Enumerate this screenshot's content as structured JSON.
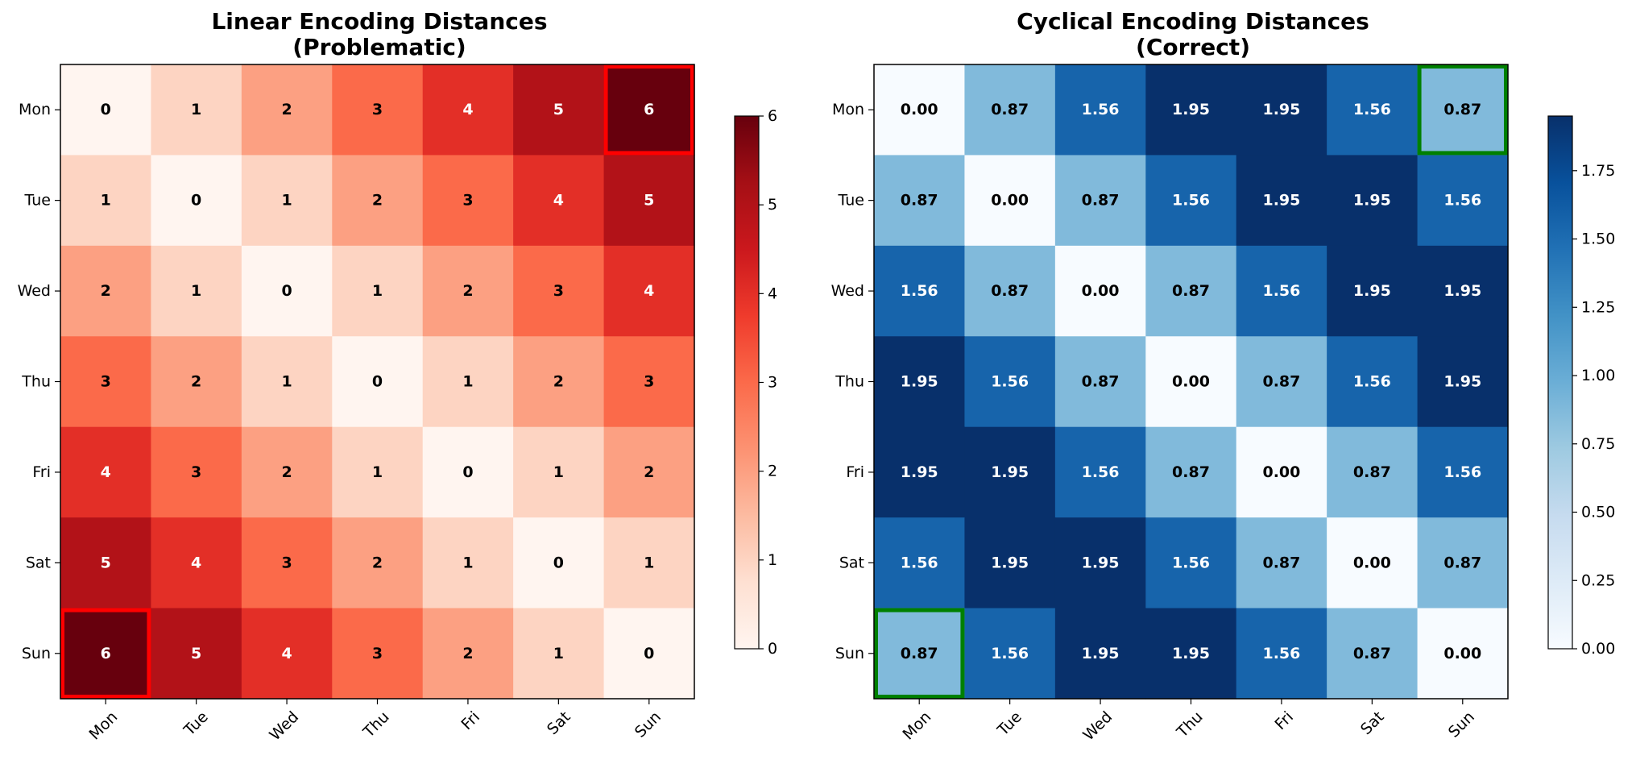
{
  "chart_data": [
    {
      "type": "heatmap",
      "title_line1": "Linear Encoding Distances",
      "title_line2": "(Problematic)",
      "row_labels": [
        "Mon",
        "Tue",
        "Wed",
        "Thu",
        "Fri",
        "Sat",
        "Sun"
      ],
      "col_labels": [
        "Mon",
        "Tue",
        "Wed",
        "Thu",
        "Fri",
        "Sat",
        "Sun"
      ],
      "values": [
        [
          0,
          1,
          2,
          3,
          4,
          5,
          6
        ],
        [
          1,
          0,
          1,
          2,
          3,
          4,
          5
        ],
        [
          2,
          1,
          0,
          1,
          2,
          3,
          4
        ],
        [
          3,
          2,
          1,
          0,
          1,
          2,
          3
        ],
        [
          4,
          3,
          2,
          1,
          0,
          1,
          2
        ],
        [
          5,
          4,
          3,
          2,
          1,
          0,
          1
        ],
        [
          6,
          5,
          4,
          3,
          2,
          1,
          0
        ]
      ],
      "cell_labels": [
        [
          "0",
          "1",
          "2",
          "3",
          "4",
          "5",
          "6"
        ],
        [
          "1",
          "0",
          "1",
          "2",
          "3",
          "4",
          "5"
        ],
        [
          "2",
          "1",
          "0",
          "1",
          "2",
          "3",
          "4"
        ],
        [
          "3",
          "2",
          "1",
          "0",
          "1",
          "2",
          "3"
        ],
        [
          "4",
          "3",
          "2",
          "1",
          "0",
          "1",
          "2"
        ],
        [
          "5",
          "4",
          "3",
          "2",
          "1",
          "0",
          "1"
        ],
        [
          "6",
          "5",
          "4",
          "3",
          "2",
          "1",
          "0"
        ]
      ],
      "colormap": "Reds",
      "vmin": 0,
      "vmax": 6,
      "colorbar_ticks": [
        0,
        1,
        2,
        3,
        4,
        5,
        6
      ],
      "colorbar_tick_labels": [
        "0",
        "1",
        "2",
        "3",
        "4",
        "5",
        "6"
      ],
      "highlight_cells": [
        [
          0,
          6
        ],
        [
          6,
          0
        ]
      ],
      "highlight_color": "#ff0000"
    },
    {
      "type": "heatmap",
      "title_line1": "Cyclical Encoding Distances",
      "title_line2": "(Correct)",
      "row_labels": [
        "Mon",
        "Tue",
        "Wed",
        "Thu",
        "Fri",
        "Sat",
        "Sun"
      ],
      "col_labels": [
        "Mon",
        "Tue",
        "Wed",
        "Thu",
        "Fri",
        "Sat",
        "Sun"
      ],
      "values": [
        [
          0.0,
          0.87,
          1.56,
          1.95,
          1.95,
          1.56,
          0.87
        ],
        [
          0.87,
          0.0,
          0.87,
          1.56,
          1.95,
          1.95,
          1.56
        ],
        [
          1.56,
          0.87,
          0.0,
          0.87,
          1.56,
          1.95,
          1.95
        ],
        [
          1.95,
          1.56,
          0.87,
          0.0,
          0.87,
          1.56,
          1.95
        ],
        [
          1.95,
          1.95,
          1.56,
          0.87,
          0.0,
          0.87,
          1.56
        ],
        [
          1.56,
          1.95,
          1.95,
          1.56,
          0.87,
          0.0,
          0.87
        ],
        [
          0.87,
          1.56,
          1.95,
          1.95,
          1.56,
          0.87,
          0.0
        ]
      ],
      "cell_labels": [
        [
          "0.00",
          "0.87",
          "1.56",
          "1.95",
          "1.95",
          "1.56",
          "0.87"
        ],
        [
          "0.87",
          "0.00",
          "0.87",
          "1.56",
          "1.95",
          "1.95",
          "1.56"
        ],
        [
          "1.56",
          "0.87",
          "0.00",
          "0.87",
          "1.56",
          "1.95",
          "1.95"
        ],
        [
          "1.95",
          "1.56",
          "0.87",
          "0.00",
          "0.87",
          "1.56",
          "1.95"
        ],
        [
          "1.95",
          "1.95",
          "1.56",
          "0.87",
          "0.00",
          "0.87",
          "1.56"
        ],
        [
          "1.56",
          "1.95",
          "1.95",
          "1.56",
          "0.87",
          "0.00",
          "0.87"
        ],
        [
          "0.87",
          "1.56",
          "1.95",
          "1.95",
          "1.56",
          "0.87",
          "0.00"
        ]
      ],
      "colormap": "Blues",
      "vmin": 0,
      "vmax": 1.95,
      "colorbar_ticks": [
        0,
        0.25,
        0.5,
        0.75,
        1.0,
        1.25,
        1.5,
        1.75
      ],
      "colorbar_tick_labels": [
        "0.00",
        "0.25",
        "0.50",
        "0.75",
        "1.00",
        "1.25",
        "1.50",
        "1.75"
      ],
      "highlight_cells": [
        [
          0,
          6
        ],
        [
          6,
          0
        ]
      ],
      "highlight_color": "#008000"
    }
  ]
}
